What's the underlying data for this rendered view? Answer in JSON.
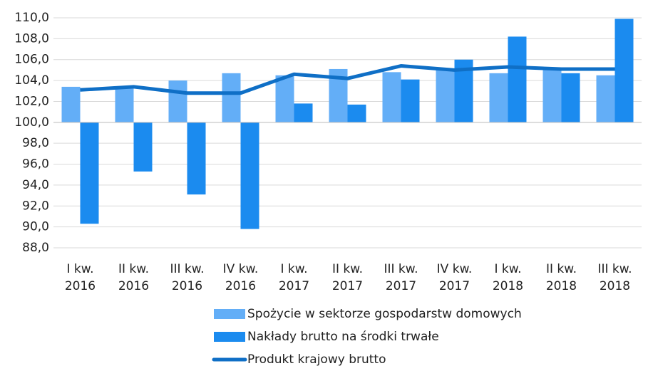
{
  "chart_data": {
    "type": "bar_line",
    "categories": [
      [
        "I kw.",
        "2016"
      ],
      [
        "II kw.",
        "2016"
      ],
      [
        "III kw.",
        "2016"
      ],
      [
        "IV kw.",
        "2016"
      ],
      [
        "I kw.",
        "2017"
      ],
      [
        "II kw.",
        "2017"
      ],
      [
        "III kw.",
        "2017"
      ],
      [
        "IV kw.",
        "2017"
      ],
      [
        "I kw.",
        "2018"
      ],
      [
        "II kw.",
        "2018"
      ],
      [
        "III kw.",
        "2018"
      ]
    ],
    "series": [
      {
        "name": "Spożycie w sektorze gospodarstw domowych",
        "type": "bar",
        "color": "#63aef7",
        "values": [
          103.4,
          103.3,
          104.0,
          104.7,
          104.5,
          105.1,
          104.8,
          105.0,
          104.7,
          105.0,
          104.5
        ]
      },
      {
        "name": "Nakłady brutto na środki trwałe",
        "type": "bar",
        "color": "#1b8bef",
        "values": [
          90.3,
          95.3,
          93.1,
          89.8,
          101.8,
          101.7,
          104.1,
          106.0,
          108.2,
          104.7,
          109.9
        ]
      },
      {
        "name": "Produkt krajowy brutto",
        "type": "line",
        "color": "#0f6fc6",
        "values": [
          103.1,
          103.4,
          102.8,
          102.8,
          104.6,
          104.2,
          105.4,
          105.0,
          105.3,
          105.1,
          105.1
        ]
      }
    ],
    "ylim": [
      88,
      110
    ],
    "yticks": [
      {
        "value": 88,
        "label": "88,0"
      },
      {
        "value": 90,
        "label": "90,0"
      },
      {
        "value": 92,
        "label": "92,0"
      },
      {
        "value": 94,
        "label": "94,0"
      },
      {
        "value": 96,
        "label": "96,0"
      },
      {
        "value": 98,
        "label": "98,0"
      },
      {
        "value": 100,
        "label": "100,0"
      },
      {
        "value": 102,
        "label": "102,0"
      },
      {
        "value": 104,
        "label": "104,0"
      },
      {
        "value": 106,
        "label": "106,0"
      },
      {
        "value": 108,
        "label": "108,0"
      },
      {
        "value": 110,
        "label": "110,0"
      }
    ],
    "x_axis_at": 100,
    "grid": true,
    "legend": "bottom"
  }
}
